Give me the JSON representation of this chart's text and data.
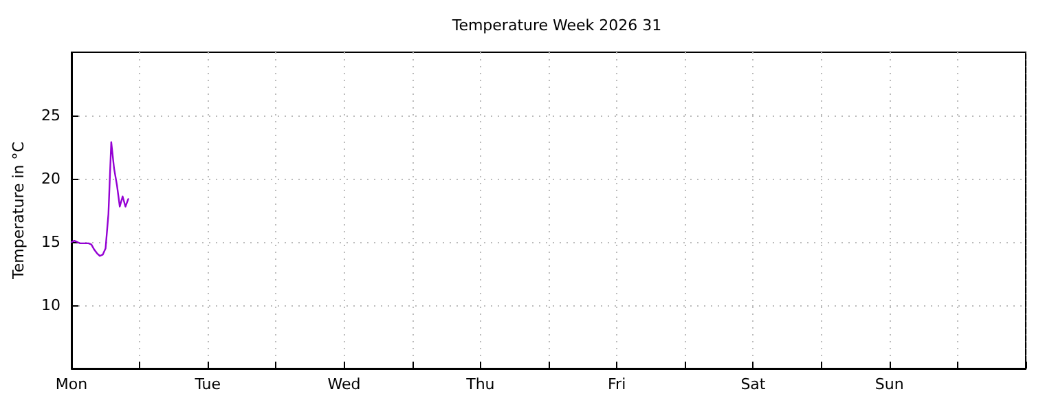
{
  "chart_data": {
    "type": "line",
    "title": "Temperature Week 2026 31",
    "ylabel": "Temperature in °C",
    "categories": [
      "Mon",
      null,
      null,
      null,
      null,
      null,
      null,
      null,
      null,
      null,
      null,
      null,
      null,
      null,
      null,
      null,
      null,
      null,
      null,
      null,
      null,
      null,
      null,
      null,
      null,
      null,
      null,
      null,
      null,
      null,
      null,
      null,
      null,
      null,
      null,
      null,
      null,
      null,
      null,
      null,
      null,
      null,
      null,
      null,
      null,
      null,
      null,
      null,
      "Tue",
      null,
      null,
      null,
      null,
      null,
      null,
      null,
      null,
      null,
      null,
      null,
      null,
      null,
      null,
      null,
      null,
      null,
      null,
      null,
      null,
      null,
      null,
      null,
      null,
      null,
      null,
      null,
      null,
      null,
      null,
      null,
      null,
      null,
      null,
      null,
      null,
      null,
      null,
      null,
      null,
      null,
      null,
      null,
      null,
      null,
      null,
      null,
      "Wed",
      null,
      null,
      null,
      null,
      null,
      null,
      null,
      null,
      null,
      null,
      null,
      null,
      null,
      null,
      null,
      null,
      null,
      null,
      null,
      null,
      null,
      null,
      null,
      null,
      null,
      null,
      null,
      null,
      null,
      null,
      null,
      null,
      null,
      null,
      null,
      null,
      null,
      null,
      null,
      null,
      null,
      null,
      null,
      null,
      null,
      null,
      null,
      "Thu",
      null,
      null,
      null,
      null,
      null,
      null,
      null,
      null,
      null,
      null,
      null,
      null,
      null,
      null,
      null,
      null,
      null,
      null,
      null,
      null,
      null,
      null,
      null,
      null,
      null,
      null,
      null,
      null,
      null,
      null,
      null,
      null,
      null,
      null,
      null,
      null,
      null,
      null,
      null,
      null,
      null,
      null,
      null,
      null,
      null,
      null,
      null,
      "Fri",
      null,
      null,
      null,
      null,
      null,
      null,
      null,
      null,
      null,
      null,
      null,
      null,
      null,
      null,
      null,
      null,
      null,
      null,
      null,
      null,
      null,
      null,
      null,
      null,
      null,
      null,
      null,
      null,
      null,
      null,
      null,
      null,
      null,
      null,
      null,
      null,
      null,
      null,
      null,
      null,
      null,
      null,
      null,
      null,
      null,
      null,
      null,
      "Sat",
      null,
      null,
      null,
      null,
      null,
      null,
      null,
      null,
      null,
      null,
      null,
      null,
      null,
      null,
      null,
      null,
      null,
      null,
      null,
      null,
      null,
      null,
      null,
      null,
      null,
      null,
      null,
      null,
      null,
      null,
      null,
      null,
      null,
      null,
      null,
      null,
      null,
      null,
      null,
      null,
      null,
      null,
      null,
      null,
      null,
      null,
      null,
      "Sun",
      null,
      null,
      null,
      null,
      null,
      null,
      null,
      null,
      null,
      null,
      null,
      null,
      null,
      null,
      null,
      null,
      null,
      null,
      null,
      null,
      null,
      null,
      null,
      null,
      null,
      null,
      null,
      null,
      null,
      null,
      null,
      null,
      null,
      null,
      null,
      null,
      null,
      null,
      null,
      null,
      null,
      null,
      null,
      null,
      null,
      null,
      null,
      null
    ],
    "series": [
      {
        "color": "#9400d3",
        "values": [
          15.0,
          15.1,
          15.0,
          14.9,
          14.9,
          14.9,
          14.9,
          14.8,
          14.4,
          14.1,
          13.9,
          14.0,
          14.5,
          17.2,
          22.9,
          20.8,
          19.5,
          17.8,
          18.6,
          17.8,
          18.4,
          null,
          null,
          null,
          null,
          null,
          null,
          null,
          null,
          null,
          null,
          null,
          null,
          null,
          null,
          null,
          null,
          null,
          null,
          null,
          null,
          null,
          null,
          null,
          null,
          null,
          null,
          null,
          null,
          null,
          null,
          null,
          null,
          null,
          null,
          null,
          null,
          null,
          null,
          null,
          null,
          null,
          null,
          null,
          null,
          null,
          null,
          null,
          null,
          null,
          null,
          null,
          null,
          null,
          null,
          null,
          null,
          null,
          null,
          null,
          null,
          null,
          null,
          null,
          null,
          null,
          null,
          null,
          null,
          null,
          null,
          null,
          null,
          null,
          null,
          null,
          null,
          null,
          null,
          null,
          null,
          null,
          null,
          null,
          null,
          null,
          null,
          null,
          null,
          null,
          null,
          null,
          null,
          null,
          null,
          null,
          null,
          null,
          null,
          null,
          null,
          null,
          null,
          null,
          null,
          null,
          null,
          null,
          null,
          null,
          null,
          null,
          null,
          null,
          null,
          null,
          null,
          null,
          null,
          null,
          null,
          null,
          null,
          null,
          null,
          null,
          null,
          null,
          null,
          null,
          null,
          null,
          null,
          null,
          null,
          null,
          null,
          null,
          null,
          null,
          null,
          null,
          null,
          null,
          null,
          null,
          null,
          null,
          null,
          null,
          null,
          null,
          null,
          null,
          null,
          null,
          null,
          null,
          null,
          null,
          null,
          null,
          null,
          null,
          null,
          null,
          null,
          null,
          null,
          null,
          null,
          null,
          null,
          null,
          null,
          null,
          null,
          null,
          null,
          null,
          null,
          null,
          null,
          null,
          null,
          null,
          null,
          null,
          null,
          null,
          null,
          null,
          null,
          null,
          null,
          null,
          null,
          null,
          null,
          null,
          null,
          null,
          null,
          null,
          null,
          null,
          null,
          null,
          null,
          null,
          null,
          null,
          null,
          null,
          null,
          null,
          null,
          null,
          null,
          null,
          null,
          null,
          null,
          null,
          null,
          null,
          null,
          null,
          null,
          null,
          null,
          null,
          null,
          null,
          null,
          null,
          null,
          null,
          null,
          null,
          null,
          null,
          null,
          null,
          null,
          null,
          null,
          null,
          null,
          null,
          null,
          null,
          null,
          null,
          null,
          null,
          null,
          null,
          null,
          null,
          null,
          null,
          null,
          null,
          null,
          null,
          null,
          null,
          null,
          null,
          null,
          null,
          null,
          null,
          null,
          null,
          null,
          null,
          null,
          null,
          null,
          null,
          null,
          null,
          null,
          null,
          null,
          null,
          null,
          null,
          null,
          null,
          null,
          null,
          null,
          null,
          null,
          null,
          null,
          null,
          null,
          null,
          null,
          null,
          null,
          null,
          null,
          null,
          null,
          null,
          null,
          null,
          null,
          null,
          null,
          null,
          null
        ]
      }
    ],
    "ylim": [
      5,
      30
    ],
    "yticks": [
      10,
      15,
      20,
      25
    ],
    "grid": true,
    "marker": "none",
    "line_style": "solid"
  }
}
